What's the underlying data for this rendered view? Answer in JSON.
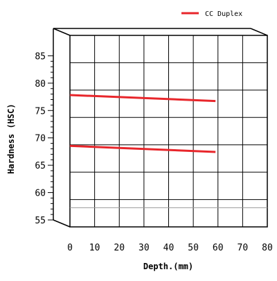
{
  "chart_data": {
    "type": "line",
    "title": "",
    "xlabel": "Depth.(mm)",
    "ylabel": "Hardness (HSC)",
    "xlim": [
      0,
      80
    ],
    "ylim": [
      55,
      90
    ],
    "x_ticks": [
      "0",
      "10",
      "20",
      "30",
      "40",
      "50",
      "60",
      "70",
      "80"
    ],
    "y_ticks": [
      "55",
      "60",
      "65",
      "70",
      "75",
      "80",
      "85"
    ],
    "grid": true,
    "legend_position": "top-right",
    "legend": [
      "CC Duplex"
    ],
    "series": [
      {
        "name": "CC Duplex",
        "x": [
          0,
          59
        ],
        "y": [
          79.1,
          78.0
        ]
      },
      {
        "name": "",
        "x": [
          0,
          59
        ],
        "y": [
          69.8,
          68.7
        ]
      }
    ],
    "reference_lines": [
      {
        "y": 58.5
      }
    ],
    "colors": {
      "series": "#e8262b",
      "grid": "#000000",
      "reference": "#9a9a9a"
    }
  }
}
